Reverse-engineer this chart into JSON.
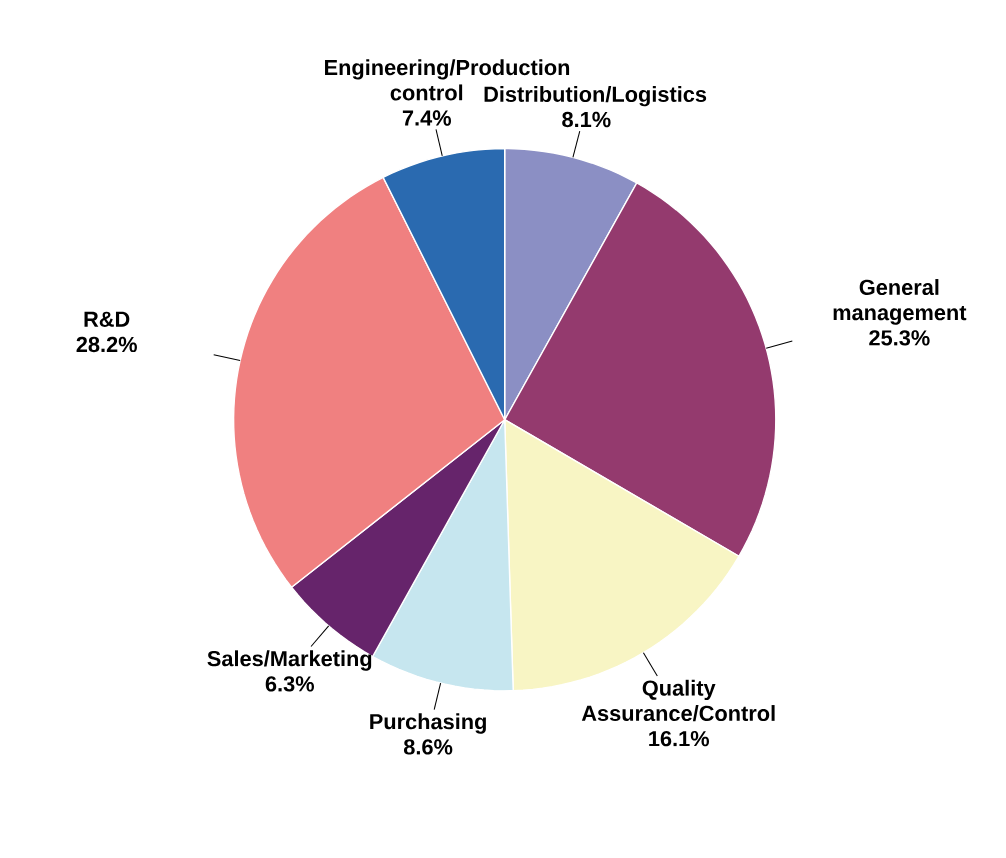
{
  "chart_data": {
    "type": "pie",
    "categories": [
      "Distribution/Logistics",
      "General management",
      "Quality Assurance/Control",
      "Purchasing",
      "Sales/Marketing",
      "R&D",
      "Engineering/Production control"
    ],
    "values": [
      8.1,
      25.3,
      16.1,
      8.6,
      6.3,
      28.2,
      7.4
    ],
    "value_labels": [
      "8.1%",
      "25.3%",
      "16.1%",
      "8.6%",
      "6.3%",
      "28.2%",
      "7.4%"
    ],
    "colors": [
      "#8b8fc4",
      "#943a6e",
      "#f8f5c4",
      "#c6e6ef",
      "#66246b",
      "#f08080",
      "#2a6ab0"
    ]
  }
}
